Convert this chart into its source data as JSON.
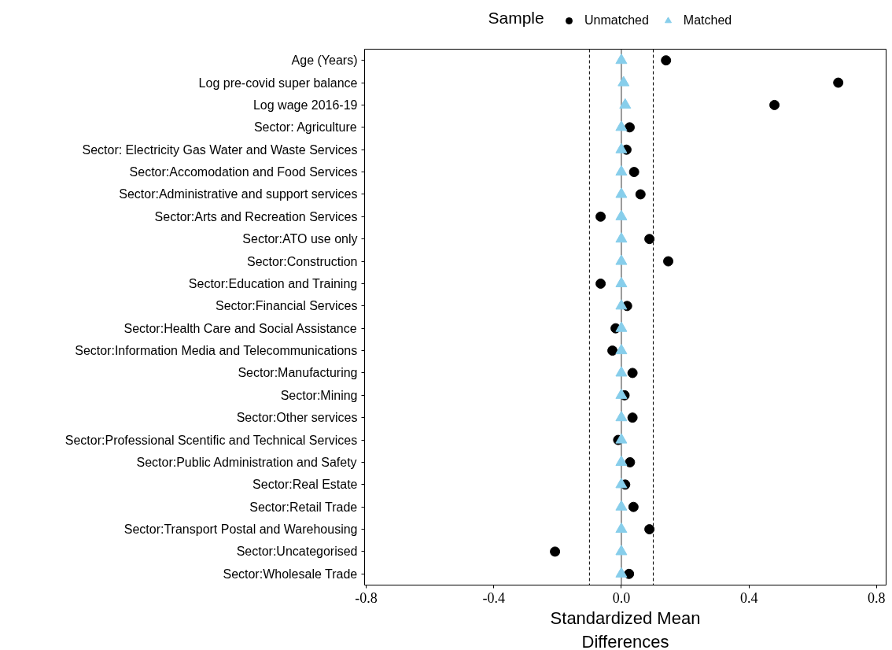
{
  "chart_data": {
    "type": "scatter",
    "orientation": "horizontal",
    "categories": [
      "Age (Years)",
      "Log pre-covid super balance",
      "Log wage 2016-19",
      "Sector: Agriculture",
      "Sector: Electricity Gas Water and Waste Services",
      "Sector:Accomodation and Food Services",
      "Sector:Administrative and support services",
      "Sector:Arts and Recreation Services",
      "Sector:ATO use only",
      "Sector:Construction",
      "Sector:Education and Training",
      "Sector:Financial Services",
      "Sector:Health Care and Social Assistance",
      "Sector:Information Media and Telecommunications",
      "Sector:Manufacturing",
      "Sector:Mining",
      "Sector:Other services",
      "Sector:Professional Scentific and Technical Services",
      "Sector:Public Administration and Safety",
      "Sector:Real Estate",
      "Sector:Retail Trade",
      "Sector:Transport Postal and Warehousing",
      "Sector:Uncategorised",
      "Sector:Wholesale Trade"
    ],
    "series": [
      {
        "name": "Unmatched",
        "color": "#000000",
        "marker": "circle",
        "values": [
          0.14,
          0.68,
          0.48,
          0.026,
          0.016,
          0.04,
          0.06,
          -0.065,
          0.088,
          0.147,
          -0.065,
          0.018,
          -0.018,
          -0.028,
          0.035,
          0.01,
          0.035,
          -0.01,
          0.027,
          0.012,
          0.038,
          0.088,
          -0.208,
          0.024
        ]
      },
      {
        "name": "Matched",
        "color": "#87ceeb",
        "marker": "triangle",
        "values": [
          0,
          0.007,
          0.012,
          0,
          0,
          0,
          0,
          0,
          0,
          0,
          0,
          0,
          0,
          0,
          0,
          0,
          0,
          0,
          0,
          0,
          0,
          0,
          0,
          0
        ]
      }
    ],
    "xlim": [
      -0.805,
      0.83
    ],
    "xticks": [
      -0.8,
      -0.4,
      {
        "value": 0,
        "label": "0.0"
      },
      0.4,
      0.8
    ],
    "xlabel": "Standardized Mean\nDifferences",
    "legend_title": "Sample",
    "legend": "top",
    "grid": false,
    "ref_lines": [
      {
        "axis": "x",
        "value": 0,
        "color": "#333333",
        "line_style": "solid"
      },
      {
        "axis": "x",
        "value": -0.1,
        "color": "#000000",
        "line_style": "dashed"
      },
      {
        "axis": "x",
        "value": 0.1,
        "color": "#000000",
        "line_style": "dashed"
      }
    ]
  }
}
